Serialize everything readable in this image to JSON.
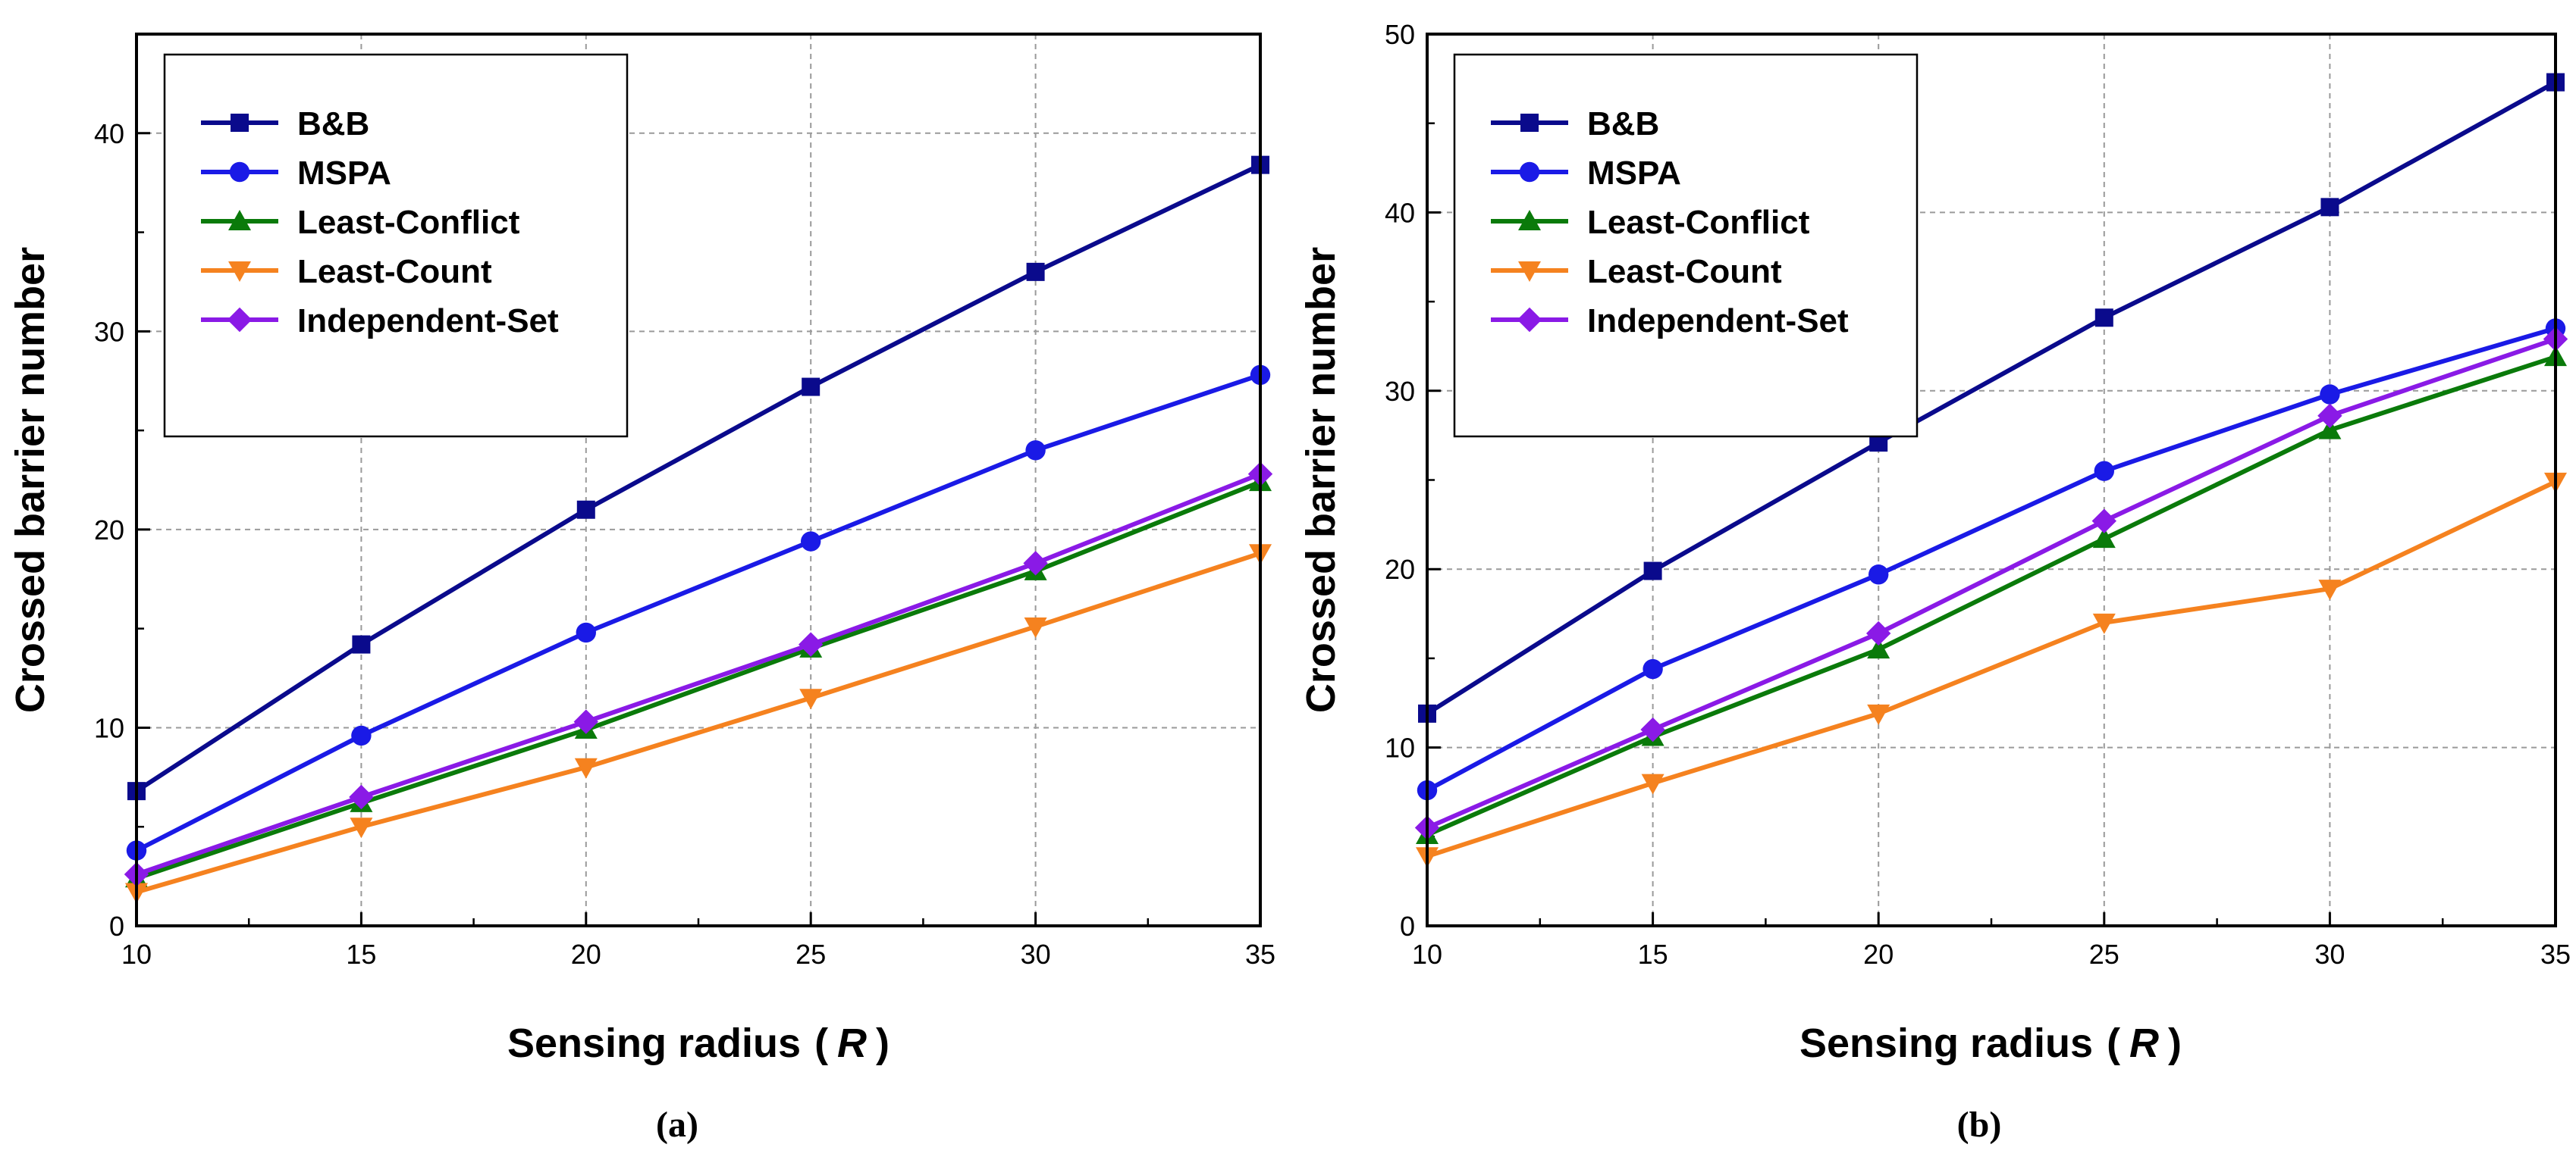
{
  "chart_data": [
    {
      "type": "line",
      "caption": "(a)",
      "xlabel": "Sensing radius",
      "xlabel_open": "(",
      "xlabel_var": "R",
      "xlabel_close": ")",
      "ylabel": "Crossed barrier number",
      "x": [
        10,
        15,
        20,
        25,
        30,
        35
      ],
      "xticks": [
        10,
        15,
        20,
        25,
        30,
        35
      ],
      "yticks": [
        0,
        10,
        20,
        30,
        40
      ],
      "xlim": [
        10,
        35
      ],
      "ylim": [
        0,
        45
      ],
      "grid": true,
      "legend_position": "top-left",
      "series": [
        {
          "name": "B&B",
          "color": "#0a0a8c",
          "marker": "square",
          "values": [
            6.8,
            14.2,
            21.0,
            27.2,
            33.0,
            38.4
          ]
        },
        {
          "name": "MSPA",
          "color": "#1a1ae6",
          "marker": "circle",
          "values": [
            3.8,
            9.6,
            14.8,
            19.4,
            24.0,
            27.8
          ]
        },
        {
          "name": "Least-Conflict",
          "color": "#0a7a0a",
          "marker": "triangle-up",
          "values": [
            2.4,
            6.2,
            9.9,
            14.0,
            17.9,
            22.4
          ]
        },
        {
          "name": "Least-Count",
          "color": "#f5821f",
          "marker": "triangle-down",
          "values": [
            1.7,
            5.0,
            8.0,
            11.5,
            15.1,
            18.8
          ]
        },
        {
          "name": "Independent-Set",
          "color": "#8a1ae6",
          "marker": "diamond",
          "values": [
            2.6,
            6.5,
            10.3,
            14.2,
            18.3,
            22.8
          ]
        }
      ]
    },
    {
      "type": "line",
      "caption": "(b)",
      "xlabel": "Sensing radius",
      "xlabel_open": "(",
      "xlabel_var": "R",
      "xlabel_close": ")",
      "ylabel": "Crossed barrier number",
      "x": [
        10,
        15,
        20,
        25,
        30,
        35
      ],
      "xticks": [
        10,
        15,
        20,
        25,
        30,
        35
      ],
      "yticks": [
        0,
        10,
        20,
        30,
        40,
        50
      ],
      "xlim": [
        10,
        35
      ],
      "ylim": [
        0,
        50
      ],
      "grid": true,
      "legend_position": "top-left",
      "series": [
        {
          "name": "B&B",
          "color": "#0a0a8c",
          "marker": "square",
          "values": [
            11.9,
            19.9,
            27.1,
            34.1,
            40.3,
            47.3
          ]
        },
        {
          "name": "MSPA",
          "color": "#1a1ae6",
          "marker": "circle",
          "values": [
            7.6,
            14.4,
            19.7,
            25.5,
            29.8,
            33.5
          ]
        },
        {
          "name": "Least-Conflict",
          "color": "#0a7a0a",
          "marker": "triangle-up",
          "values": [
            5.1,
            10.6,
            15.5,
            21.7,
            27.8,
            31.9
          ]
        },
        {
          "name": "Least-Count",
          "color": "#f5821f",
          "marker": "triangle-down",
          "values": [
            3.9,
            8.0,
            11.9,
            17.0,
            18.9,
            24.9
          ]
        },
        {
          "name": "Independent-Set",
          "color": "#8a1ae6",
          "marker": "diamond",
          "values": [
            5.5,
            11.0,
            16.4,
            22.7,
            28.6,
            32.9
          ]
        }
      ]
    }
  ]
}
